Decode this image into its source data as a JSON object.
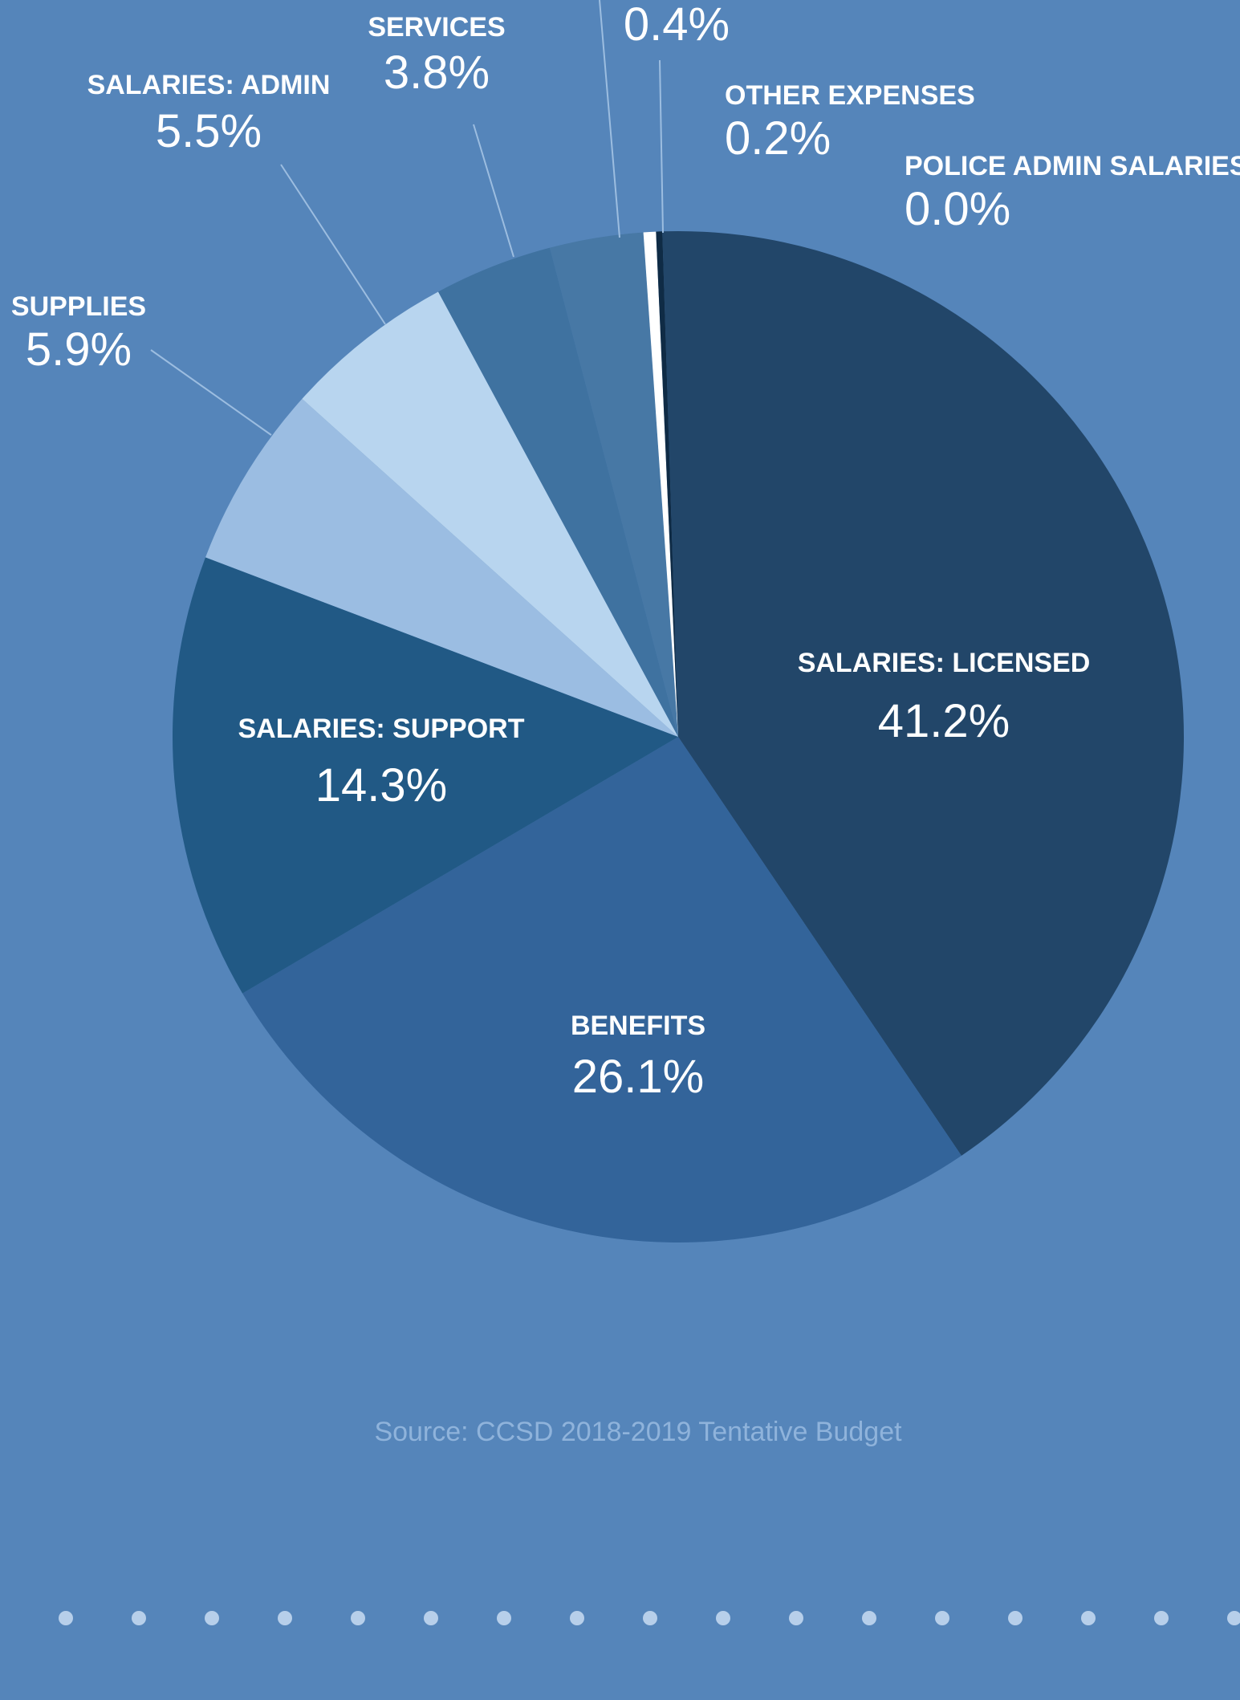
{
  "chart_data": {
    "type": "pie",
    "slices": [
      {
        "label": "SALARIES: LICENSED",
        "value": 41.2,
        "pct_text": "41.2%",
        "color": "#224669"
      },
      {
        "label": "BENEFITS",
        "value": 26.1,
        "pct_text": "26.1%",
        "color": "#33649a"
      },
      {
        "label": "SALARIES: SUPPORT",
        "value": 14.3,
        "pct_text": "14.3%",
        "color": "#215985"
      },
      {
        "label": "SUPPLIES",
        "value": 5.9,
        "pct_text": "5.9%",
        "color": "#9bbde2"
      },
      {
        "label": "SALARIES: ADMIN",
        "value": 5.5,
        "pct_text": "5.5%",
        "color": "#b8d5ef"
      },
      {
        "label": "SERVICES",
        "value": 3.8,
        "pct_text": "3.8%",
        "color": "#3f72a0"
      },
      {
        "label": "",
        "value": 3.0,
        "pct_text": "",
        "color": "#4778a5"
      },
      {
        "label": "",
        "value": 0.4,
        "pct_text": "0.4%",
        "color": "#ffffff"
      },
      {
        "label": "OTHER EXPENSES",
        "value": 0.2,
        "pct_text": "0.2%",
        "color": "#0f2b45"
      },
      {
        "label": "POLICE ADMIN SALARIES",
        "value": 0.0,
        "pct_text": "0.0%",
        "color": "#0f2b45"
      }
    ]
  },
  "source_text": "Source:  CCSD 2018-2019 Tentative Budget",
  "colors": {
    "background": "#5585ba",
    "dots": "#b7cfea",
    "source_text": "#8fb3db",
    "leader_lines": "#9cbde0"
  }
}
